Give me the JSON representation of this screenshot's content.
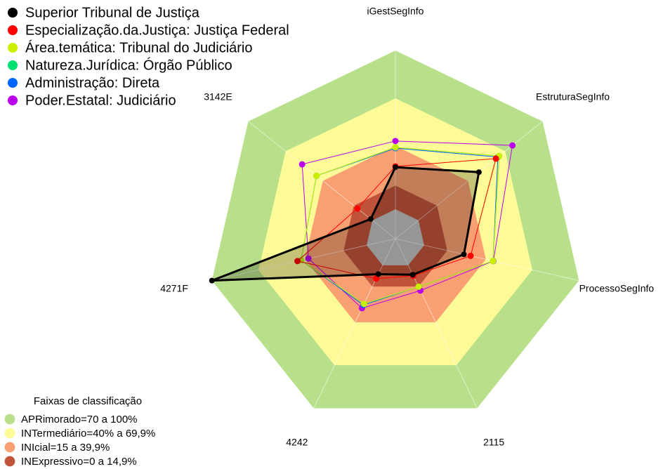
{
  "chart_data": {
    "type": "radar",
    "categories": [
      "iGestSegInfo",
      "EstruturaSegInfo",
      "ProcessoSegInfo",
      "2115",
      "4242",
      "4271F",
      "3142E"
    ],
    "ylim": [
      0,
      100
    ],
    "series": [
      {
        "name": "Superior Tribunal de Justiça",
        "color": "#000000",
        "values": [
          26.5,
          48.7,
          25.7,
          6.6,
          6.2,
          100,
          1.3
        ]
      },
      {
        "name": "Especialização.da.Justiça: Justiça Federal",
        "color": "#ff0000",
        "values": [
          27,
          62.4,
          30,
          7.3,
          9.3,
          44.7,
          12
        ]
      },
      {
        "name": "Área.temática: Tribunal do Judiciário",
        "color": "#ccee00",
        "values": [
          39,
          65,
          44.5,
          15,
          27,
          42.4,
          45
        ]
      },
      {
        "name": "Natureza.Jurídica: Órgão Público",
        "color": "#00e070",
        "values": [
          39,
          65,
          44.5,
          15,
          27,
          42.4,
          45
        ]
      },
      {
        "name": "Administração: Direta",
        "color": "#0066ff",
        "values": [
          38.5,
          64,
          44.5,
          15,
          27.8,
          42.4,
          45
        ]
      },
      {
        "name": "Poder.Estatal: Judiciário",
        "color": "#bb00ee",
        "values": [
          43,
          75.7,
          44.7,
          17.7,
          30,
          37.6,
          56.6
        ]
      }
    ],
    "bands_title": "Faixas de classificação",
    "bands": [
      {
        "label": "APRimorado=70 a 100%",
        "from": 70,
        "to": 100,
        "color": "#b8e08a"
      },
      {
        "label": "INTermediário=40% a 69,9%",
        "from": 40,
        "to": 69.9,
        "color": "#fdfb98"
      },
      {
        "label": "INIcial=15 a 39,9%",
        "from": 15,
        "to": 39.9,
        "color": "#f9a073"
      },
      {
        "label": "INExpressivo=0 a 14,9%",
        "from": 0,
        "to": 14.9,
        "color": "#c0543a"
      }
    ]
  }
}
